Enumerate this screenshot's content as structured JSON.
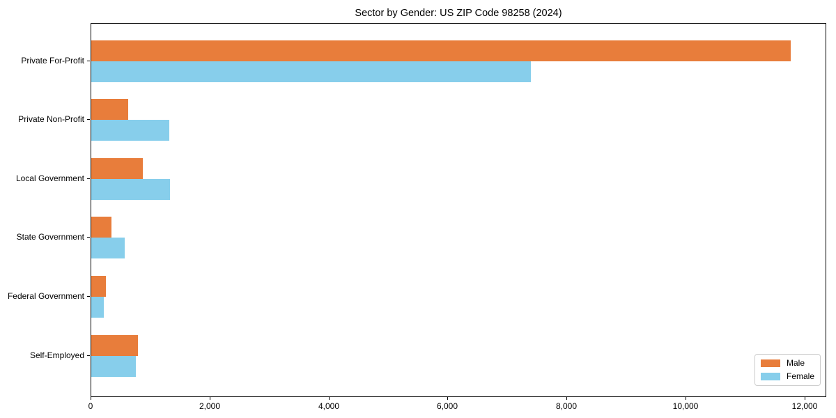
{
  "title": "Sector by Gender: US ZIP Code 98258 (2024)",
  "chart_data": {
    "type": "bar",
    "orientation": "horizontal",
    "title": "Sector by Gender: US ZIP Code 98258 (2024)",
    "xlabel": "",
    "ylabel": "",
    "categories": [
      "Private For-Profit",
      "Private Non-Profit",
      "Local Government",
      "State Government",
      "Federal Government",
      "Self-Employed"
    ],
    "series": [
      {
        "name": "Male",
        "color": "#E87D3B",
        "values": [
          11750,
          625,
          870,
          335,
          250,
          790
        ]
      },
      {
        "name": "Female",
        "color": "#87CEEB",
        "values": [
          7390,
          1315,
          1325,
          565,
          205,
          755
        ]
      }
    ],
    "xlim": [
      0,
      12340
    ],
    "xticks": [
      0,
      2000,
      4000,
      6000,
      8000,
      10000,
      12000
    ],
    "xtick_labels": [
      "0",
      "2,000",
      "4,000",
      "6,000",
      "8,000",
      "10,000",
      "12,000"
    ],
    "legend_position": "lower right",
    "grid": false,
    "background_color": "#ffffff",
    "axis_color": "#000000"
  }
}
